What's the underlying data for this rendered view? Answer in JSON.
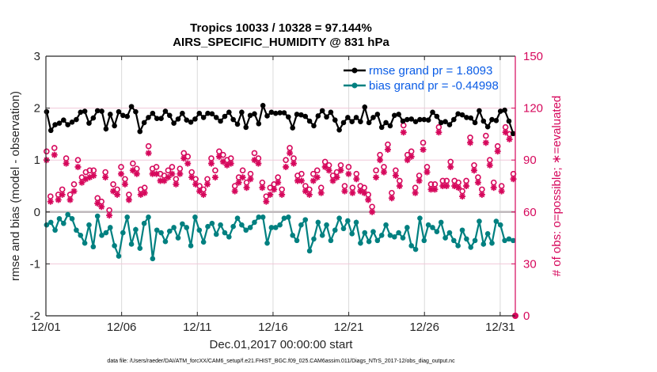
{
  "chart_data": {
    "type": "line",
    "title_line1": "Tropics 10033 / 10328 = 97.144%",
    "title_line2": "AIRS_SPECIFIC_HUMIDITY @ 831 hPa",
    "xlabel": "Dec.01,2017 00:00:00 start",
    "ylabel": "rmse and bias (model - observation)",
    "ylabel_right": "# of obs: o=possible; ∗=evaluated",
    "footnote": "data file: /Users/raeder/DAI/ATM_forcXX/CAM6_setup/f.e21.FHIST_BGC.f09_025.CAM6assim.011/Diags_NTrS_2017-12/obs_diag_output.nc",
    "xlim": [
      0,
      31
    ],
    "ylim": [
      -2,
      3
    ],
    "ylim_right": [
      0,
      150
    ],
    "x_ticks": [
      {
        "value": 0,
        "label": "12/01"
      },
      {
        "value": 5,
        "label": "12/06"
      },
      {
        "value": 10,
        "label": "12/11"
      },
      {
        "value": 15,
        "label": "12/16"
      },
      {
        "value": 20,
        "label": "12/21"
      },
      {
        "value": 25,
        "label": "12/26"
      },
      {
        "value": 30,
        "label": "12/31"
      }
    ],
    "y_ticks": [
      "-2",
      "-1",
      "0",
      "1",
      "2",
      "3"
    ],
    "y_ticks_right": [
      "0",
      "30",
      "60",
      "90",
      "120",
      "150"
    ],
    "grid": "x-major",
    "legend_position": "top-right",
    "colors": {
      "rmse": "#000000",
      "bias": "#008080",
      "obs": "#d6085c",
      "legend_text": "#0a5ce6",
      "zero_line": "#bfb8bb",
      "right_grid": "#f0c8d8"
    },
    "series": [
      {
        "name": "rmse grand pr = 1.8093",
        "key": "rmse",
        "values": [
          1.93,
          1.8,
          1.76,
          1.57,
          1.78,
          1.72,
          1.68,
          1.74,
          1.61,
          1.71,
          1.68,
          1.55,
          1.77,
          1.74,
          1.62,
          1.68,
          1.76,
          1.94,
          1.73,
          1.67,
          1.8,
          1.78,
          1.9,
          1.87,
          1.92,
          1.89,
          1.98,
          1.94,
          1.67,
          1.83,
          1.71,
          1.98,
          1.78,
          1.81,
          1.91,
          1.72,
          1.95,
          1.85,
          1.77,
          1.94,
          1.75,
          1.68,
          1.6,
          1.74,
          1.65,
          1.88,
          1.92,
          1.83,
          1.66,
          1.81,
          2.07,
          1.93,
          1.62,
          1.82,
          1.86,
          1.73,
          1.87,
          1.84,
          1.91,
          1.81,
          2.03,
          1.81,
          1.75,
          1.93,
          1.87,
          1.51,
          1.55,
          1.57,
          1.67,
          1.72,
          1.75,
          1.81,
          1.82,
          1.83,
          1.9,
          1.9,
          1.73,
          1.72,
          1.8,
          1.82,
          1.89,
          1.8,
          1.72,
          1.66,
          1.94,
          1.72,
          1.74,
          1.86,
          1.83,
          1.86,
          1.71,
          1.95,
          1.73,
          1.79,
          1.89,
          1.75,
          1.9,
          1.82,
          1.76,
          1.77,
          1.95,
          1.8,
          1.73,
          1.79,
          1.67,
          1.79,
          1.82,
          1.85,
          1.9,
          1.82,
          1.69,
          1.82,
          1.88,
          1.84,
          1.9,
          1.82,
          1.76,
          1.89,
          1.86,
          1.52,
          1.82,
          1.67,
          1.59,
          1.75,
          1.78,
          1.74,
          1.84,
          1.72,
          1.63,
          1.92,
          1.82,
          1.81,
          1.78,
          1.93,
          1.73,
          1.69,
          1.87,
          1.96,
          1.92,
          1.87,
          1.86,
          1.63,
          1.79,
          1.59,
          1.86,
          1.85,
          1.99,
          1.89,
          1.7,
          1.79,
          1.7,
          1.85,
          1.82,
          2.05,
          1.95,
          1.73,
          1.85,
          1.92,
          1.71,
          1.92,
          1.8,
          1.92,
          1.9,
          1.88,
          1.93,
          1.91,
          2.1,
          2.04,
          1.91,
          1.77,
          1.86,
          1.83,
          1.6,
          1.74,
          1.62,
          1.68,
          1.78,
          1.88,
          1.72,
          1.82,
          1.87,
          1.71,
          1.92,
          1.84,
          1.79,
          1.85,
          1.75,
          1.92,
          1.79,
          1.66,
          1.89,
          1.78,
          1.85,
          2.06,
          1.95,
          1.95,
          1.87,
          1.95,
          1.83,
          1.73,
          1.81,
          1.92,
          1.84,
          1.71,
          1.77,
          1.85,
          1.83,
          1.58,
          1.55,
          1.74,
          1.72,
          1.85,
          1.93,
          1.82,
          1.75,
          1.6,
          1.74,
          1.7,
          1.76,
          1.82,
          1.78,
          1.59,
          1.74,
          1.81,
          1.83,
          2.02,
          1.93,
          1.78,
          1.72,
          1.87,
          1.82,
          1.82,
          1.95,
          1.79,
          1.88,
          1.7,
          1.74,
          1.63,
          1.61,
          1.55,
          1.72,
          1.77,
          1.72,
          1.66,
          1.74,
          1.78,
          1.86,
          1.87,
          1.84,
          1.88,
          1.97,
          1.84,
          1.75,
          1.8,
          1.82,
          1.78,
          1.62,
          1.59,
          1.79,
          1.86,
          1.9,
          1.74,
          1.96,
          1.82,
          1.78,
          1.72,
          1.68,
          1.78,
          1.82,
          1.65,
          1.77,
          1.63,
          1.7,
          1.92,
          1.88,
          1.93,
          1.84,
          1.64,
          1.6,
          1.72,
          1.73,
          1.98,
          1.74,
          1.62,
          1.67,
          1.68,
          1.98,
          1.79,
          1.78,
          2.1,
          1.93,
          1.89,
          1.74,
          1.81,
          1.87,
          1.62,
          1.75,
          1.82,
          1.83,
          1.99,
          1.81,
          1.7,
          1.82,
          1.72,
          1.66,
          1.65,
          1.95,
          1.79,
          1.84,
          1.75,
          1.82,
          1.81,
          1.64,
          1.7,
          1.85,
          1.78,
          1.81,
          1.83,
          1.76,
          1.82,
          1.86,
          1.94,
          1.76,
          1.73,
          1.96,
          1.92,
          1.93,
          1.75,
          1.66,
          1.56,
          1.51,
          1.52
        ]
      },
      {
        "name": "bias grand pr = -0.44998",
        "key": "bias",
        "values": [
          -0.25,
          -0.2,
          -0.48,
          -0.2,
          -0.15,
          -0.05,
          -0.35,
          -0.22,
          -0.23,
          -0.13,
          -0.3,
          -0.28,
          -0.22,
          -0.37,
          -0.28,
          -0.05,
          -0.1,
          -0.57,
          -0.13,
          -0.35,
          -0.22,
          -0.35,
          -0.28,
          -0.05,
          -0.45,
          -0.1,
          -0.02,
          -0.6,
          -0.3,
          -0.72,
          -0.25,
          -0.28,
          -0.52,
          -0.67,
          -0.15,
          -0.15,
          -0.08,
          -0.73,
          -0.38,
          -0.45,
          -0.2,
          -0.33,
          -0.4,
          -0.22,
          -0.28,
          -0.3,
          -1.22,
          -0.35,
          -0.65,
          -0.2,
          -0.5,
          -0.85,
          -0.05,
          -0.2,
          -0.4,
          -0.3,
          -0.7,
          -0.1,
          -0.4,
          -0.5,
          -0.62,
          -0.13,
          -0.27,
          -0.34,
          -0.13,
          -0.6,
          -0.7,
          -0.45,
          -0.15,
          -0.22,
          -0.48,
          -0.42,
          -0.1,
          -0.35,
          -0.43,
          -0.9,
          -0.2,
          -0.57,
          -0.35,
          -0.37,
          -0.45,
          -0.4,
          -0.13,
          -0.1,
          -0.57,
          -0.35,
          -0.25,
          -0.37,
          -0.58,
          -0.78,
          -0.3,
          0.25,
          -0.05,
          -0.5,
          -0.4,
          -0.57,
          -0.23,
          -0.32,
          -0.42,
          -0.3,
          -0.5,
          -0.55,
          -0.65,
          -0.45,
          -0.23,
          -0.1,
          -0.55,
          -0.4,
          -0.35,
          -0.45,
          -0.18,
          -0.58,
          -0.5,
          -0.28,
          -0.28,
          -0.27,
          -0.67,
          -0.22,
          -0.35,
          -0.2,
          -0.43,
          -0.55,
          -0.52,
          -0.25,
          -0.27,
          -0.13,
          -0.4,
          -0.52,
          -0.23,
          -0.48,
          -0.4,
          -0.6,
          -0.28,
          -0.37,
          -0.22,
          -0.12,
          -0.45,
          -0.2,
          -0.25,
          -0.4,
          -0.6,
          -0.35,
          -0.28,
          -0.27,
          -0.3,
          -0.5,
          -0.38,
          -0.2,
          -0.45,
          -0.3,
          -0.1,
          -0.13,
          -0.07,
          -0.1,
          -0.2,
          -0.5,
          -0.6,
          -0.3,
          -0.55,
          -0.3,
          -0.38,
          -0.8,
          -0.3,
          -0.7,
          -0.35,
          -0.25,
          -0.35,
          -0.55,
          -0.12,
          -0.3,
          -0.45,
          -0.1,
          -0.18,
          -0.3,
          -0.45,
          -0.6,
          -0.4,
          -0.55,
          -0.65,
          -0.45,
          -0.25,
          -0.1,
          -0.62,
          -0.15,
          -0.3,
          -0.1,
          -0.75,
          -0.3,
          -0.4,
          -0.52,
          -0.25,
          -0.1,
          -0.2,
          -0.52,
          -0.35,
          -0.45,
          -0.22,
          -0.5,
          -0.25,
          -0.55,
          -0.65,
          -0.55,
          -0.1,
          -0.4,
          -0.35,
          -0.22,
          -0.3,
          -0.12,
          -0.58,
          -0.4,
          -0.32,
          -0.55,
          -0.2,
          -0.17,
          -0.05,
          -0.25,
          -0.42,
          -0.1,
          -0.28,
          -0.2,
          -0.55,
          -0.15,
          -0.6,
          -0.3,
          -0.25,
          -0.4,
          -0.35,
          -0.18,
          -0.57,
          -0.42,
          -0.05,
          -0.38,
          -0.25,
          -0.7,
          -0.55,
          -0.52,
          -0.2,
          -0.45,
          -0.58,
          -0.45,
          -0.25,
          -0.5,
          -0.32,
          -0.45,
          -0.52,
          -0.18,
          -0.48,
          -0.7,
          -0.62,
          -0.4,
          -0.25,
          -0.68,
          -0.5,
          -0.35,
          -0.2,
          -0.3,
          -0.55,
          -0.12,
          -0.65,
          -0.45,
          -0.3,
          -0.72,
          -0.35,
          -0.2,
          -0.12,
          -0.4,
          -0.62,
          -0.55,
          -0.27,
          -0.42,
          -0.25,
          -0.58,
          -0.35,
          -0.3,
          -0.55,
          -0.45,
          -0.38,
          -0.4,
          -0.3,
          -0.2,
          -0.35,
          -0.25,
          -0.5,
          -0.3,
          -0.62,
          -0.4,
          -0.5,
          -0.28,
          -0.55,
          -0.45,
          -0.35,
          -0.65,
          -0.25,
          -0.45,
          -0.35,
          -0.55,
          -0.2,
          -0.52,
          -0.78,
          -0.3,
          -0.68,
          -0.4,
          -0.25,
          -0.55,
          -0.7,
          -0.45,
          -0.18,
          -0.55,
          -0.4,
          -0.62,
          -0.3,
          -0.72,
          -0.42,
          -0.35,
          -0.25,
          -0.6,
          -0.32,
          -0.45,
          -0.18,
          -0.65,
          -0.4,
          -0.25,
          -0.38,
          -0.45,
          -0.55,
          -0.35,
          -0.42,
          -0.52,
          -0.28,
          -0.4,
          -0.55,
          -0.45
        ]
      }
    ],
    "obs_possible": [
      95,
      94,
      70,
      69,
      96,
      96,
      97,
      99,
      71,
      70,
      70,
      60,
      73,
      75,
      72,
      91,
      90,
      92,
      70,
      69,
      82,
      76,
      87,
      88,
      90,
      91,
      83,
      80,
      70,
      79,
      83,
      87,
      79,
      84,
      80,
      90,
      84,
      71,
      74,
      68,
      74,
      87,
      66,
      69,
      82,
      83,
      87,
      85,
      61,
      71,
      80,
      76,
      85,
      84,
      73,
      73,
      80,
      86,
      84,
      80,
      79,
      72,
      86,
      70,
      93,
      83,
      88,
      82,
      74,
      85,
      78,
      64,
      73,
      84,
      81,
      74,
      94,
      90,
      98,
      96,
      95,
      85,
      80,
      86,
      86,
      93,
      80,
      82,
      85,
      83,
      81,
      84,
      95,
      84,
      79,
      80,
      86,
      77,
      79,
      79,
      85,
      82,
      85,
      78,
      89,
      94,
      96,
      93,
      92,
      95,
      94,
      83,
      82,
      80,
      79,
      82,
      75,
      75,
      79,
      82,
      73,
      80,
      76,
      79,
      88,
      90,
      91,
      85,
      80,
      84,
      71,
      97,
      95,
      90,
      89,
      93,
      73,
      76,
      90,
      89,
      90,
      91,
      85,
      79,
      75,
      88,
      68,
      80,
      77,
      87,
      84,
      85,
      96,
      77,
      83,
      86,
      82,
      87,
      74,
      94,
      89,
      87,
      91,
      88,
      91,
      77,
      81,
      87,
      69,
      75,
      75,
      74,
      71,
      73,
      76,
      87,
      85,
      80,
      72,
      67,
      73,
      58,
      87,
      90,
      92,
      90,
      97,
      96,
      92,
      91,
      66,
      86,
      81,
      87,
      80,
      82,
      80,
      83,
      75,
      91,
      87,
      73,
      87,
      77,
      82,
      70,
      80,
      84,
      72,
      79,
      74,
      83,
      86,
      89,
      83,
      88,
      87,
      65,
      87,
      81,
      80,
      74,
      83,
      79,
      83,
      87,
      76,
      85,
      75,
      91,
      80,
      86,
      82,
      75,
      74,
      72,
      64,
      82,
      90,
      89,
      75,
      87,
      77,
      74,
      84,
      85,
      70,
      80,
      85,
      63,
      77,
      86,
      84,
      80,
      75,
      93,
      67,
      77,
      86,
      78,
      92,
      99,
      70,
      91,
      71,
      61,
      90,
      84,
      68,
      81,
      78,
      82,
      104,
      110,
      100,
      99,
      93,
      93,
      90,
      95,
      73,
      85,
      74,
      77,
      83,
      81,
      77,
      75,
      100,
      96,
      81,
      86,
      62,
      80,
      76,
      102,
      90,
      76,
      112,
      117,
      109,
      97,
      108,
      78,
      93,
      98,
      78,
      88,
      91,
      89,
      82,
      89,
      78,
      77,
      74,
      77,
      94,
      75,
      72,
      75,
      74,
      78,
      106,
      101,
      103,
      98,
      89,
      87,
      82,
      86,
      80,
      81,
      76,
      73,
      79,
      74,
      104,
      106,
      105,
      90,
      84,
      82,
      77,
      76,
      84,
      98,
      88,
      79,
      75,
      105,
      124,
      109,
      107,
      105,
      105,
      102,
      85,
      82,
      88
    ],
    "obs_evaluated": [
      90,
      84,
      66,
      66,
      93,
      93,
      93,
      95,
      67,
      67,
      66,
      57,
      70,
      72,
      68,
      88,
      86,
      89,
      67,
      66,
      79,
      72,
      84,
      84,
      86,
      88,
      80,
      77,
      67,
      75,
      79,
      84,
      75,
      80,
      76,
      86,
      81,
      68,
      70,
      65,
      71,
      84,
      63,
      65,
      78,
      80,
      84,
      81,
      58,
      67,
      76,
      72,
      82,
      80,
      70,
      70,
      76,
      82,
      80,
      76,
      76,
      68,
      82,
      67,
      90,
      80,
      84,
      79,
      70,
      82,
      74,
      60,
      70,
      80,
      78,
      71,
      90,
      87,
      94,
      93,
      92,
      82,
      76,
      83,
      82,
      89,
      77,
      78,
      82,
      80,
      78,
      80,
      92,
      80,
      76,
      77,
      82,
      74,
      76,
      76,
      82,
      78,
      82,
      75,
      86,
      91,
      93,
      90,
      88,
      92,
      91,
      80,
      78,
      77,
      76,
      78,
      72,
      72,
      76,
      79,
      70,
      77,
      72,
      76,
      84,
      86,
      88,
      82,
      77,
      80,
      68,
      94,
      92,
      86,
      86,
      89,
      70,
      73,
      87,
      86,
      87,
      88,
      82,
      76,
      72,
      84,
      65,
      77,
      74,
      83,
      80,
      82,
      92,
      74,
      80,
      82,
      79,
      84,
      70,
      90,
      86,
      84,
      88,
      85,
      88,
      74,
      77,
      83,
      66,
      72,
      72,
      70,
      68,
      70,
      73,
      83,
      82,
      77,
      69,
      64,
      70,
      55,
      84,
      86,
      88,
      87,
      94,
      92,
      89,
      88,
      63,
      82,
      78,
      84,
      77,
      78,
      77,
      80,
      72,
      88,
      84,
      70,
      84,
      74,
      78,
      67,
      76,
      80,
      69,
      76,
      71,
      80,
      82,
      86,
      80,
      85,
      84,
      62,
      84,
      78,
      77,
      71,
      80,
      75,
      80,
      84,
      73,
      82,
      72,
      88,
      77,
      82,
      79,
      72,
      71,
      69,
      61,
      79,
      87,
      86,
      72,
      84,
      74,
      71,
      81,
      82,
      67,
      77,
      82,
      60,
      74,
      83,
      80,
      77,
      72,
      90,
      64,
      74,
      83,
      75,
      89,
      96,
      67,
      88,
      68,
      58,
      87,
      81,
      65,
      78,
      75,
      79,
      100,
      106,
      96,
      96,
      90,
      90,
      86,
      92,
      70,
      82,
      71,
      74,
      80,
      78,
      74,
      72,
      96,
      93,
      78,
      83,
      59,
      77,
      73,
      98,
      87,
      73,
      108,
      113,
      106,
      94,
      104,
      75,
      90,
      95,
      75,
      85,
      88,
      86,
      79,
      86,
      75,
      74,
      71,
      74,
      91,
      72,
      69,
      72,
      71,
      75,
      102,
      98,
      100,
      95,
      86,
      84,
      79,
      83,
      77,
      78,
      73,
      70,
      76,
      71,
      100,
      103,
      101,
      87,
      81,
      79,
      74,
      73,
      81,
      95,
      85,
      76,
      72,
      101,
      120,
      106,
      104,
      102,
      102,
      99,
      82,
      79,
      85
    ]
  }
}
